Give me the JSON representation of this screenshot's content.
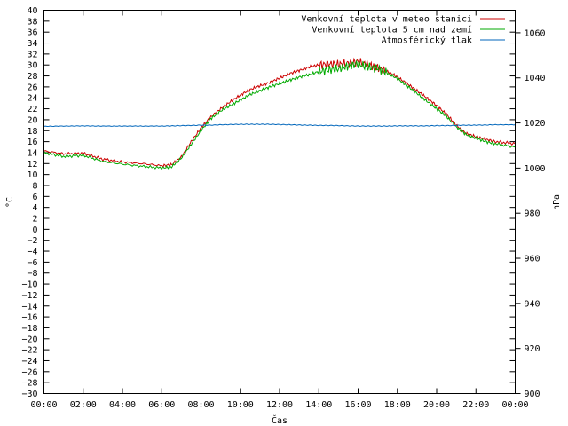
{
  "chart_data": {
    "type": "line",
    "xlabel": "Čas",
    "ylabel_left": "°C",
    "ylabel_right": "hPa",
    "x_ticks": [
      "00:00",
      "02:00",
      "04:00",
      "06:00",
      "08:00",
      "10:00",
      "12:00",
      "14:00",
      "16:00",
      "18:00",
      "20:00",
      "22:00",
      "00:00"
    ],
    "ylim_left": [
      -30,
      40
    ],
    "ylim_right": [
      900,
      1070
    ],
    "y_left_ticks": [
      40,
      38,
      36,
      34,
      32,
      30,
      28,
      26,
      24,
      22,
      20,
      18,
      16,
      14,
      12,
      10,
      8,
      6,
      4,
      2,
      0,
      -2,
      -4,
      -6,
      -8,
      -10,
      -12,
      -14,
      -16,
      -18,
      -20,
      -22,
      -24,
      -26,
      -28,
      -30
    ],
    "y_right_ticks": [
      1060,
      1040,
      1020,
      1000,
      980,
      960,
      940,
      920,
      900
    ],
    "grid": false,
    "legend_position": "top-right",
    "x_hours": [
      0,
      1,
      2,
      3,
      4,
      5,
      6,
      6.5,
      7,
      7.5,
      8,
      8.5,
      9,
      9.5,
      10,
      10.5,
      11,
      11.5,
      12,
      12.5,
      13,
      13.5,
      14,
      14.5,
      15,
      15.5,
      16,
      16.5,
      17,
      17.5,
      18,
      18.5,
      19,
      19.5,
      20,
      20.5,
      21,
      21.5,
      22,
      22.5,
      23,
      24
    ],
    "series": [
      {
        "name": "Venkovní teplota v meteo stanici",
        "color": "#cc0000",
        "axis": "left",
        "values": [
          14.3,
          13.8,
          13.9,
          12.8,
          12.3,
          12.0,
          11.6,
          11.8,
          13.2,
          16.0,
          18.5,
          20.5,
          22.0,
          23.3,
          24.5,
          25.5,
          26.2,
          26.8,
          27.6,
          28.4,
          29.0,
          29.6,
          30.0,
          30.2,
          30.1,
          30.3,
          30.6,
          30.0,
          29.5,
          28.8,
          27.8,
          26.6,
          25.3,
          24.0,
          22.6,
          21.0,
          19.0,
          17.5,
          16.9,
          16.4,
          16.0,
          15.6
        ]
      },
      {
        "name": "Venkovní teplota 5 cm nad zemí",
        "color": "#00aa00",
        "axis": "left",
        "values": [
          14.0,
          13.3,
          13.5,
          12.4,
          11.9,
          11.5,
          11.2,
          11.4,
          13.0,
          15.5,
          18.0,
          20.2,
          21.6,
          22.6,
          23.6,
          24.6,
          25.3,
          26.0,
          26.6,
          27.2,
          27.8,
          28.2,
          28.8,
          29.1,
          29.3,
          29.8,
          30.2,
          29.6,
          29.4,
          28.5,
          27.5,
          26.2,
          24.8,
          23.4,
          22.0,
          20.6,
          18.7,
          17.3,
          16.6,
          16.0,
          15.6,
          15.0
        ]
      },
      {
        "name": "Atmosférický tlak",
        "color": "#0066bb",
        "axis": "right",
        "values": [
          1018.5,
          1018.6,
          1018.7,
          1018.6,
          1018.6,
          1018.6,
          1018.6,
          1018.7,
          1018.8,
          1018.9,
          1019.0,
          1019.0,
          1019.2,
          1019.3,
          1019.4,
          1019.4,
          1019.4,
          1019.4,
          1019.3,
          1019.2,
          1019.1,
          1019.0,
          1018.9,
          1018.9,
          1018.8,
          1018.7,
          1018.6,
          1018.6,
          1018.6,
          1018.6,
          1018.7,
          1018.7,
          1018.7,
          1018.7,
          1018.8,
          1018.8,
          1018.9,
          1019.0,
          1019.0,
          1019.1,
          1019.2,
          1019.2
        ]
      }
    ]
  }
}
